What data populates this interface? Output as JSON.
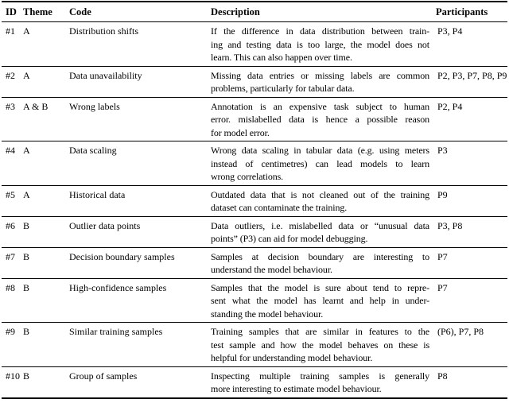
{
  "table": {
    "columns": [
      "ID",
      "Theme",
      "Code",
      "Description",
      "Participants"
    ],
    "rows": [
      {
        "id": "#1",
        "theme": "A",
        "code": "Distribution shifts",
        "description_lines": [
          "If the difference in data distribution between train-",
          "ing and testing data is too large, the model does not",
          "learn. This can also happen over time."
        ],
        "participants": "P3, P4"
      },
      {
        "id": "#2",
        "theme": "A",
        "code": "Data unavailability",
        "description_lines": [
          "Missing data entries or missing labels are common",
          "problems, particularly for tabular data."
        ],
        "participants": "P2, P3, P7, P8, P9"
      },
      {
        "id": "#3",
        "theme": "A & B",
        "code": "Wrong labels",
        "description_lines": [
          "Annotation is an expensive task subject to human",
          "error. mislabelled data is hence a possible reason",
          "for model error."
        ],
        "participants": "P2, P4"
      },
      {
        "id": "#4",
        "theme": "A",
        "code": "Data scaling",
        "description_lines": [
          "Wrong data scaling in tabular data (e.g. using meters",
          "instead of centimetres) can lead models to learn",
          "wrong correlations."
        ],
        "participants": "P3"
      },
      {
        "id": "#5",
        "theme": "A",
        "code": "Historical data",
        "description_lines": [
          "Outdated data that is not cleaned out of the training",
          "dataset can contaminate the training."
        ],
        "participants": "P9"
      },
      {
        "id": "#6",
        "theme": "B",
        "code": "Outlier data points",
        "description_lines": [
          "Data outliers, i.e. mislabelled data or “unusual data",
          "points” (P3) can aid for model debugging."
        ],
        "participants": "P3, P8"
      },
      {
        "id": "#7",
        "theme": "B",
        "code": "Decision boundary samples",
        "description_lines": [
          "Samples at decision boundary are interesting to",
          "understand the model behaviour."
        ],
        "participants": "P7"
      },
      {
        "id": "#8",
        "theme": "B",
        "code": "High-confidence samples",
        "description_lines": [
          "Samples that the model is sure about tend to repre-",
          "sent what the model has learnt and help in under-",
          "standing the model behaviour."
        ],
        "participants": "P7"
      },
      {
        "id": "#9",
        "theme": "B",
        "code": "Similar training samples",
        "description_lines": [
          "Training samples that are similar in features to the",
          "test sample and how the model behaves on these is",
          "helpful for understanding model behaviour."
        ],
        "participants": "(P6), P7, P8"
      },
      {
        "id": "#10",
        "theme": "B",
        "code": "Group of samples",
        "description_lines": [
          "Inspecting multiple training samples is generally",
          "more interesting to estimate model behaviour."
        ],
        "participants": "P8"
      }
    ]
  }
}
